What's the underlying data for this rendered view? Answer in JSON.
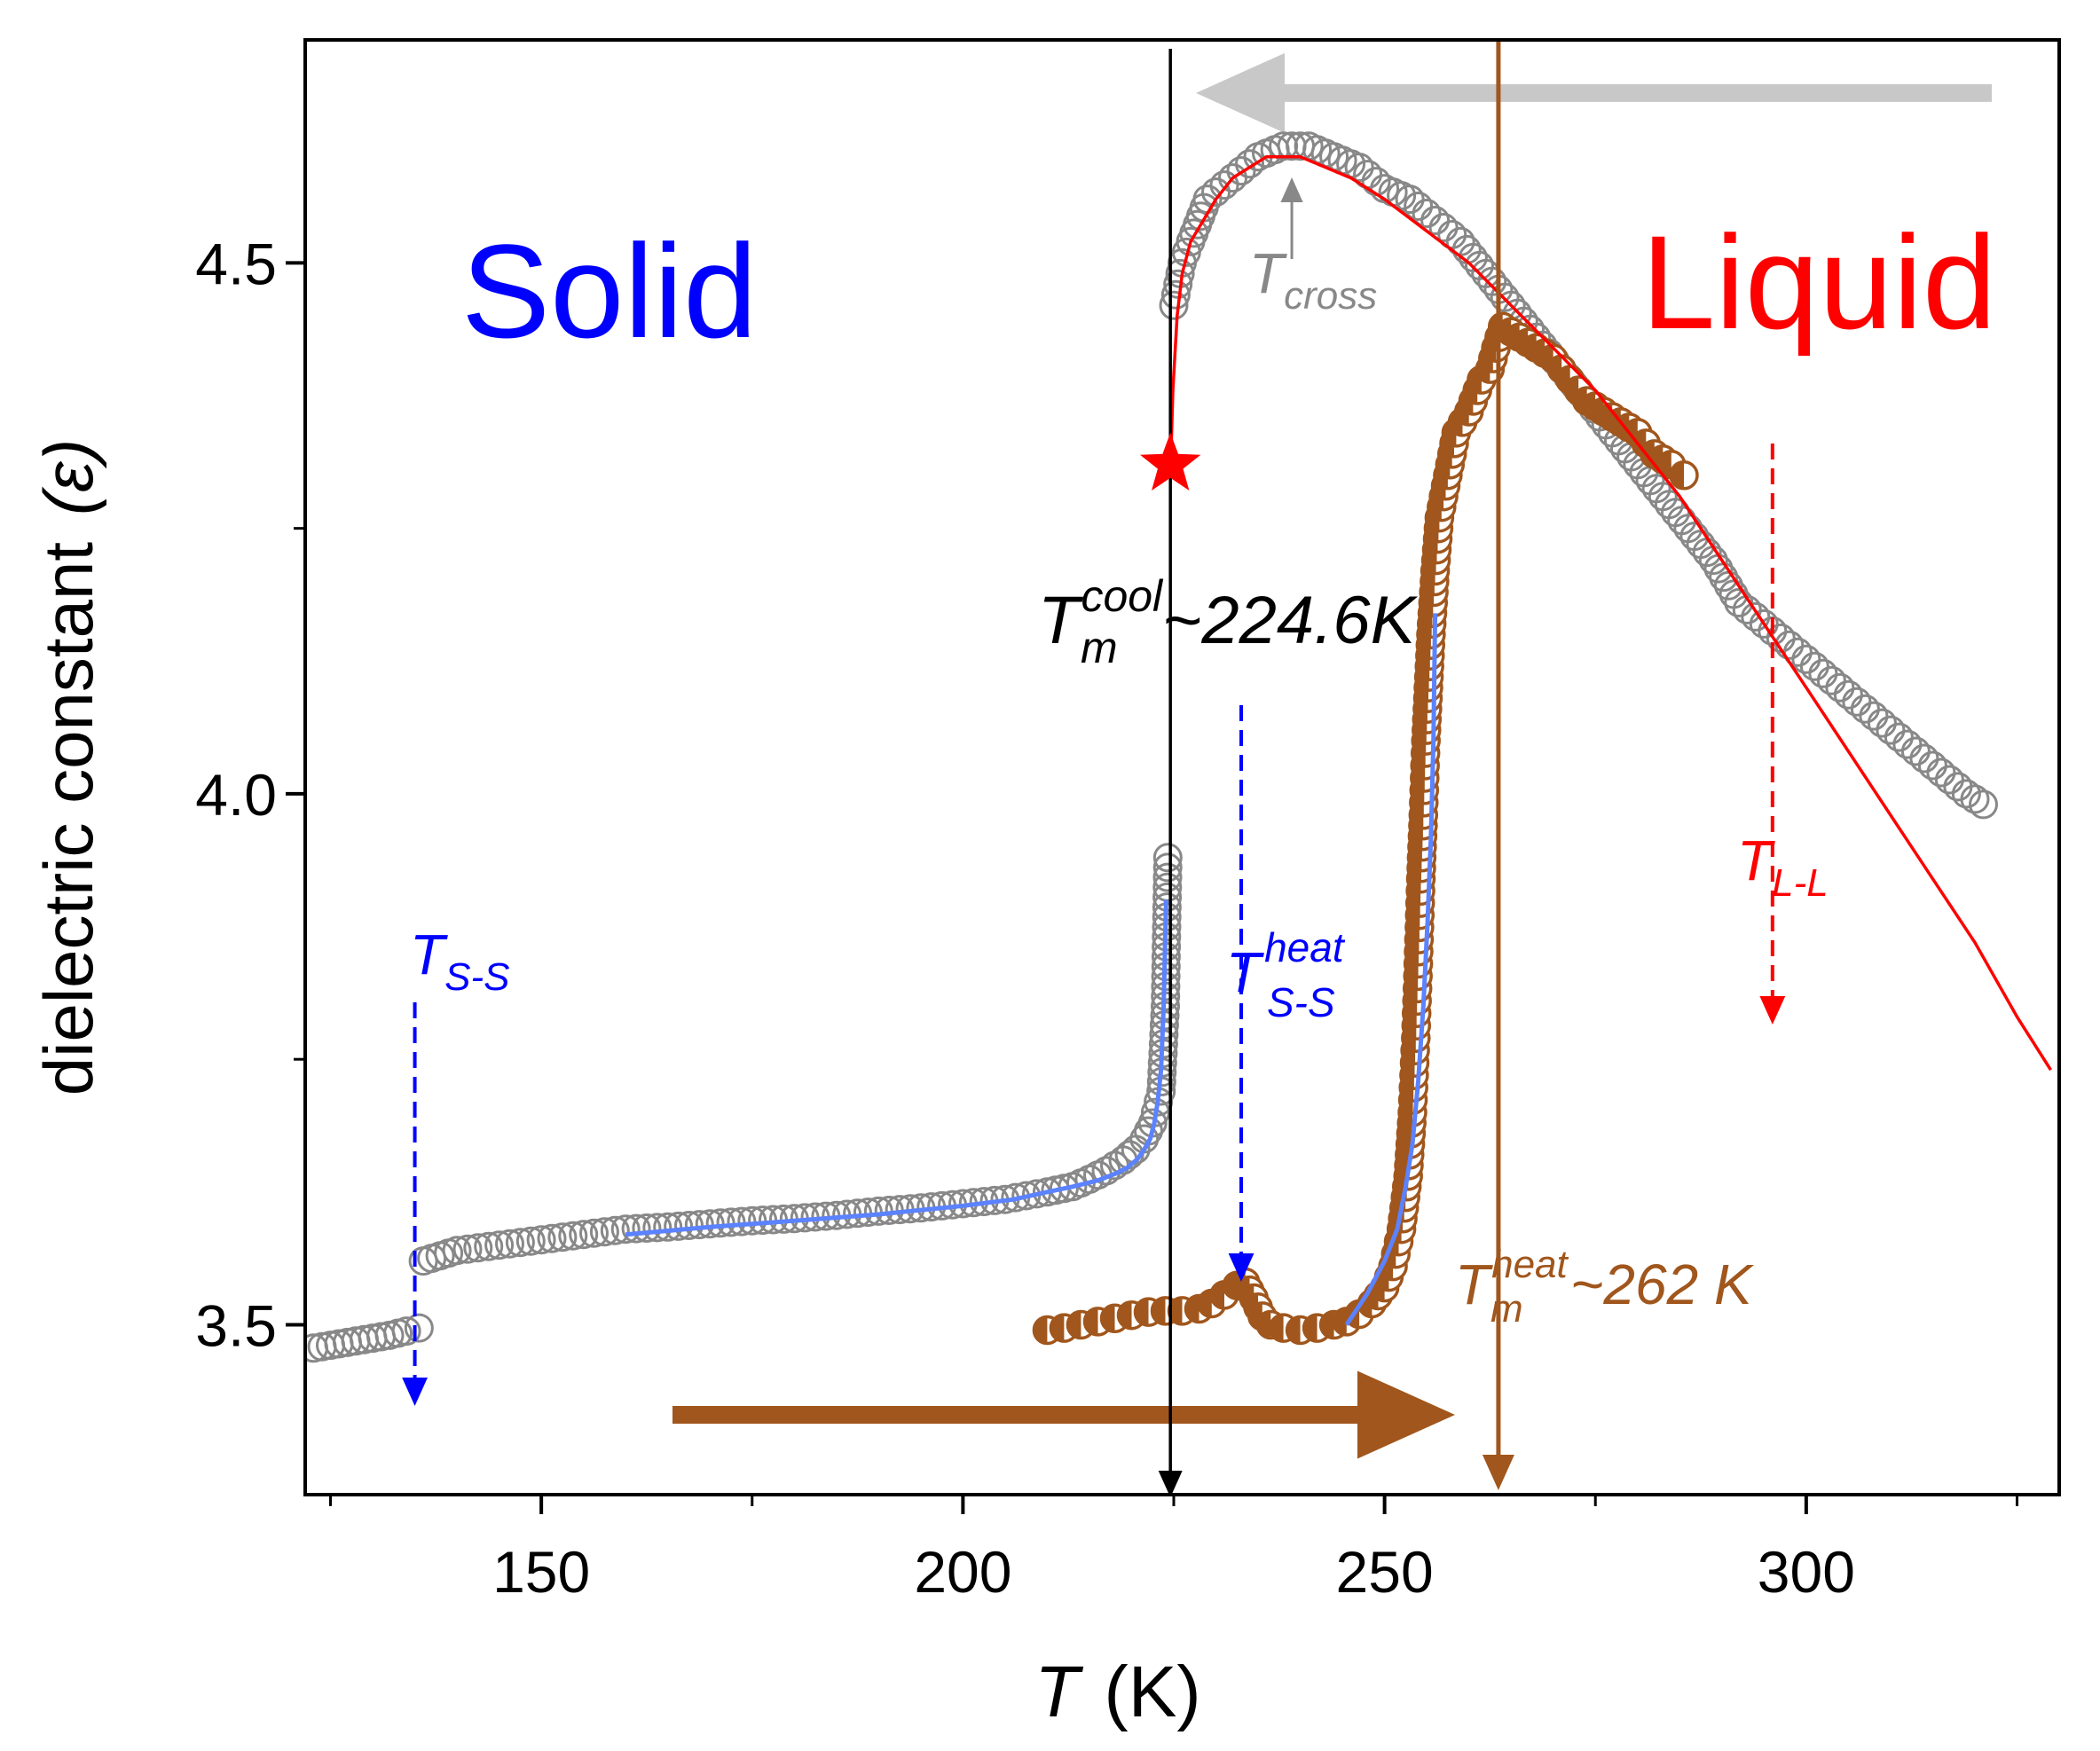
{
  "chart_data": {
    "type": "scatter",
    "xlabel": "T",
    "xunit": "(K)",
    "ylabel": "dielectric constant",
    "ysymbol": "(ε)",
    "xlim": [
      122,
      330
    ],
    "ylim": [
      3.34,
      4.71
    ],
    "xticks": [
      150,
      200,
      250,
      300
    ],
    "xtick_labels": [
      "150",
      "200",
      "250",
      "300"
    ],
    "yticks": [
      3.5,
      4.0,
      4.5
    ],
    "ytick_labels": [
      "3.5",
      "4.0",
      "4.5"
    ],
    "grid": false,
    "colors": {
      "cooling": "#888888",
      "heating": "#a0561c",
      "blue": "#0000ff",
      "fit_blue": "#5b82ff",
      "red": "#ff0000",
      "black": "#000000",
      "gray_arrow": "#c8c8c8"
    },
    "region_labels": {
      "solid": "Solid",
      "liquid": "Liquid"
    },
    "annotations": {
      "tm_cool": {
        "main": "T",
        "sub": "m",
        "sup": "cool",
        "text": "~224.6K",
        "x": 224.6
      },
      "tm_heat": {
        "main": "T",
        "sub": "m",
        "sup": "heat",
        "text": "~262 K",
        "x": 263.5
      },
      "t_cross": {
        "main": "T",
        "sub": "cross",
        "x": 239
      },
      "t_ss": {
        "main": "T",
        "sub": "S-S",
        "x": 135
      },
      "t_ss_heat": {
        "main": "T",
        "sub": "S-S",
        "sup": "heat",
        "x": 233
      },
      "t_ll": {
        "main": "T",
        "sub": "L-L",
        "x": 296
      },
      "star": {
        "x": 224.6,
        "y": 4.31
      }
    },
    "series": [
      {
        "name": "cooling",
        "marker": "open-circle",
        "segments": [
          {
            "x": [
              123,
              126,
              129,
              132,
              134,
              135.5
            ],
            "y": [
              3.478,
              3.482,
              3.486,
              3.49,
              3.494,
              3.497
            ]
          },
          {
            "x": [
              136,
              140,
              145,
              150,
              155,
              160,
              165,
              170,
              175,
              180,
              185,
              190,
              195,
              200,
              205,
              210,
              213,
              215,
              217,
              219,
              220.5,
              221.5,
              222.5,
              223.5,
              224,
              224.3
            ],
            "y": [
              3.56,
              3.57,
              3.575,
              3.58,
              3.585,
              3.59,
              3.592,
              3.595,
              3.598,
              3.6,
              3.603,
              3.607,
              3.61,
              3.614,
              3.618,
              3.625,
              3.63,
              3.637,
              3.645,
              3.655,
              3.665,
              3.675,
              3.69,
              3.72,
              3.8,
              3.94
            ]
          },
          {
            "x": [
              225,
              226,
              227,
              229,
              232,
              235,
              238,
              241,
              244,
              247,
              250,
              253,
              256,
              259,
              262,
              265,
              268,
              271,
              274,
              277,
              280,
              283,
              286,
              289,
              292,
              295,
              298,
              301,
              304,
              307,
              310,
              313,
              316,
              319,
              321
            ],
            "y": [
              4.46,
              4.5,
              4.52,
              4.56,
              4.58,
              4.6,
              4.61,
              4.61,
              4.6,
              4.59,
              4.57,
              4.56,
              4.54,
              4.52,
              4.49,
              4.46,
              4.43,
              4.4,
              4.37,
              4.34,
              4.31,
              4.28,
              4.25,
              4.22,
              4.18,
              4.16,
              4.14,
              4.12,
              4.1,
              4.08,
              4.06,
              4.04,
              4.02,
              4.0,
              3.99
            ]
          }
        ]
      },
      {
        "name": "heating",
        "marker": "half-filled-circle",
        "segments": [
          {
            "x": [
              210,
              212,
              214,
              216,
              218,
              220,
              222,
              224,
              226,
              228,
              229.5,
              231,
              232.5,
              233.5,
              234.5,
              235.5,
              236.5,
              238,
              240,
              242,
              244,
              245.5,
              247,
              248.5,
              250,
              251,
              252,
              252.8,
              253.3,
              253.7,
              254,
              254.3,
              254.6,
              254.9,
              255.2,
              255.5,
              256,
              256.5,
              257.5,
              258.5,
              260,
              261.5,
              262.5,
              263.2,
              264,
              266,
              268,
              270,
              272,
              274,
              276,
              278,
              280,
              282,
              284,
              285.5
            ],
            "y": [
              3.495,
              3.497,
              3.5,
              3.503,
              3.506,
              3.509,
              3.512,
              3.513,
              3.513,
              3.515,
              3.52,
              3.528,
              3.537,
              3.54,
              3.525,
              3.508,
              3.5,
              3.497,
              3.495,
              3.497,
              3.5,
              3.503,
              3.51,
              3.52,
              3.535,
              3.555,
              3.59,
              3.64,
              3.7,
              3.77,
              3.84,
              3.92,
              3.98,
              4.05,
              4.1,
              4.15,
              4.21,
              4.26,
              4.3,
              4.34,
              4.36,
              4.39,
              4.4,
              4.42,
              4.44,
              4.43,
              4.42,
              4.41,
              4.39,
              4.37,
              4.36,
              4.35,
              4.34,
              4.32,
              4.31,
              4.3
            ]
          }
        ]
      },
      {
        "name": "fit-solid-cooling",
        "style": "line",
        "x": [
          160,
          170,
          180,
          190,
          200,
          206,
          210,
          213,
          216,
          218,
          219.5,
          220.7,
          221.5,
          222.2,
          222.7,
          223.1,
          223.5,
          223.8,
          224.1
        ],
        "y": [
          3.585,
          3.592,
          3.598,
          3.604,
          3.612,
          3.618,
          3.625,
          3.63,
          3.636,
          3.642,
          3.648,
          3.656,
          3.665,
          3.675,
          3.69,
          3.71,
          3.74,
          3.8,
          3.9
        ]
      },
      {
        "name": "fit-solid-heating",
        "style": "line",
        "x": [
          245.5,
          248,
          250,
          251.5,
          252.5,
          253.3,
          254,
          254.6,
          255.1,
          255.5,
          255.8,
          256
        ],
        "y": [
          3.5,
          3.53,
          3.56,
          3.59,
          3.63,
          3.67,
          3.73,
          3.8,
          3.88,
          3.96,
          4.05,
          4.17
        ]
      },
      {
        "name": "fit-liquid",
        "style": "line",
        "x": [
          224.6,
          224.9,
          225.4,
          226,
          227,
          228.5,
          230,
          232,
          234,
          236,
          238,
          240,
          243,
          246,
          250,
          255,
          260,
          265,
          270,
          275,
          280,
          285,
          290,
          295,
          300,
          305,
          310,
          315,
          320,
          325,
          329
        ],
        "y": [
          4.3,
          4.38,
          4.45,
          4.49,
          4.52,
          4.54,
          4.56,
          4.58,
          4.59,
          4.6,
          4.6,
          4.6,
          4.59,
          4.58,
          4.56,
          4.53,
          4.5,
          4.46,
          4.42,
          4.38,
          4.33,
          4.28,
          4.22,
          4.16,
          4.1,
          4.04,
          3.98,
          3.92,
          3.86,
          3.79,
          3.74
        ]
      }
    ]
  }
}
